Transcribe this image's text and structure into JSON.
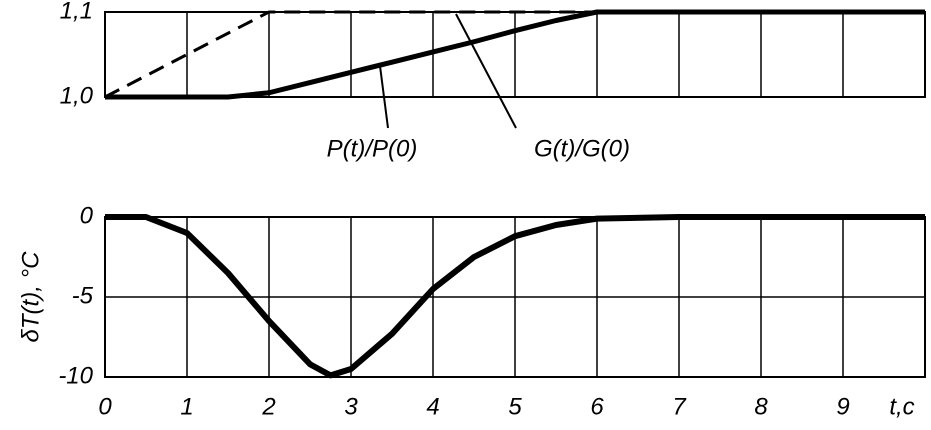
{
  "chart_data": [
    {
      "type": "line",
      "xlim": [
        0,
        10
      ],
      "ylim": [
        1.0,
        1.1
      ],
      "yticks": [
        {
          "value": 1.0,
          "label": "1,0"
        },
        {
          "value": 1.1,
          "label": "1,1"
        }
      ],
      "series": [
        {
          "name": "P(t)/P(0)",
          "color": "#000000",
          "style": "solid",
          "x": [
            0,
            1.5,
            2,
            2.5,
            3,
            3.5,
            4,
            4.5,
            5,
            5.5,
            6,
            10
          ],
          "values": [
            1.0,
            1.0,
            1.005,
            1.017,
            1.029,
            1.041,
            1.053,
            1.065,
            1.078,
            1.09,
            1.1,
            1.1
          ]
        },
        {
          "name": "G(t)/G(0)",
          "color": "#000000",
          "style": "dashed",
          "x": [
            0,
            2,
            6
          ],
          "values": [
            1.0,
            1.1,
            1.1
          ]
        }
      ]
    },
    {
      "type": "line",
      "ylabel": "δT(t), °C",
      "xlabel": "t,c",
      "xlim": [
        0,
        10
      ],
      "xticks": [
        0,
        1,
        2,
        3,
        4,
        5,
        6,
        7,
        8,
        9
      ],
      "ylim": [
        -10,
        0
      ],
      "yticks": [
        0,
        -5,
        -10
      ],
      "grid": true,
      "series": [
        {
          "name": "δT(t)",
          "color": "#000000",
          "style": "solid",
          "x": [
            0,
            0.5,
            1,
            1.5,
            2,
            2.5,
            2.75,
            3,
            3.5,
            4,
            4.5,
            5,
            5.5,
            6,
            7,
            10
          ],
          "values": [
            0,
            0,
            -1,
            -3.5,
            -6.5,
            -9.2,
            -9.9,
            -9.5,
            -7.3,
            -4.5,
            -2.5,
            -1.2,
            -0.5,
            -0.1,
            0,
            0
          ]
        }
      ]
    }
  ]
}
